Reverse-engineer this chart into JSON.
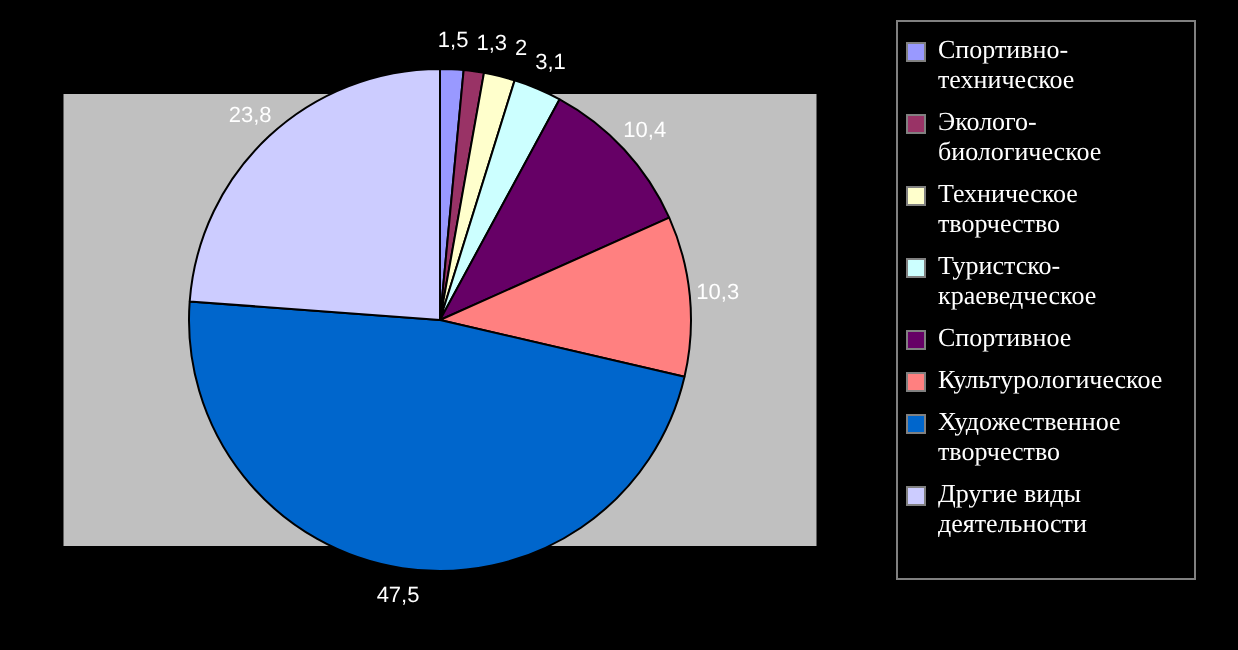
{
  "chart_data": {
    "type": "pie",
    "categories": [
      "Спортивно-техническое",
      "Эколого-биологическое",
      "Техническое творчество",
      "Туристско-краеведческое",
      "Спортивное",
      "Культурологическое",
      "Художественное творчество",
      "Другие виды деятельности"
    ],
    "values": [
      1.5,
      1.3,
      2,
      3.1,
      10.4,
      10.3,
      47.5,
      23.8
    ],
    "value_labels": [
      "1,5",
      "1,3",
      "2",
      "3,1",
      "10,4",
      "10,3",
      "47,5",
      "23,8"
    ],
    "colors": [
      "#9999ff",
      "#993366",
      "#ffffcc",
      "#ccffff",
      "#660066",
      "#ff8080",
      "#0066cc",
      "#ccccff"
    ],
    "legend": "right"
  }
}
